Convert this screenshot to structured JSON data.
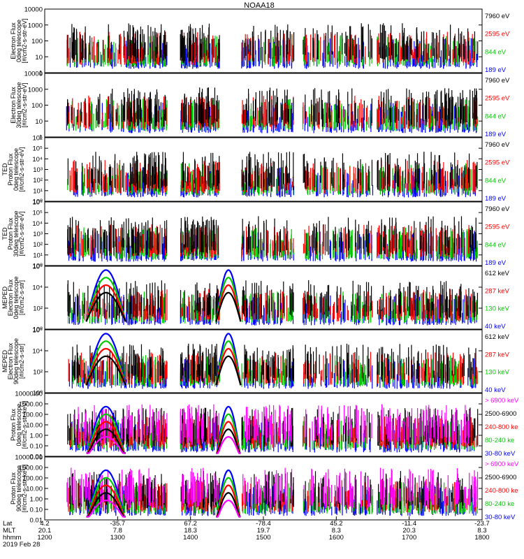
{
  "title": "NOAA18",
  "colors": {
    "blue": "#0000ff",
    "red": "#ff0000",
    "green": "#00cc00",
    "black": "#000000",
    "magenta": "#ff00ff"
  },
  "chart_data": [
    {
      "type": "line",
      "ylabel": [
        "Electron Flux",
        "0deg telescope",
        "[#/cm2-s-str-eV]"
      ],
      "yscale": "log",
      "ylim": [
        1,
        10000
      ],
      "yticks": [
        "1",
        "10",
        "100",
        "1000",
        "10000"
      ],
      "legend": [
        {
          "label": "7960 eV",
          "color": "black"
        },
        {
          "label": "2595 eV",
          "color": "red"
        },
        {
          "label": "844 eV",
          "color": "green"
        },
        {
          "label": "189 eV",
          "color": "blue"
        }
      ]
    },
    {
      "type": "line",
      "ylabel": [
        "Electron Flux",
        "30deg telescope",
        "[#/cm2-s-str-eV]"
      ],
      "yscale": "log",
      "ylim": [
        1,
        10000
      ],
      "yticks": [
        "1",
        "10",
        "100",
        "1000",
        "10000"
      ],
      "legend": [
        {
          "label": "7960 eV",
          "color": "black"
        },
        {
          "label": "2595 eV",
          "color": "red"
        },
        {
          "label": "844 eV",
          "color": "green"
        },
        {
          "label": "189 eV",
          "color": "blue"
        }
      ]
    },
    {
      "type": "line",
      "ylabel": [
        "TED",
        "Proton Flux",
        "0deg telescope",
        "[#/cm2-s-str-eV]"
      ],
      "yscale": "log",
      "ylim": [
        1,
        1000000
      ],
      "yticks": [
        "10⁰",
        "10¹",
        "10²",
        "10³",
        "10⁴",
        "10⁵",
        "10⁶"
      ],
      "legend": [
        {
          "label": "7960 eV",
          "color": "black"
        },
        {
          "label": "2595 eV",
          "color": "red"
        },
        {
          "label": "844 eV",
          "color": "green"
        },
        {
          "label": "189 eV",
          "color": "blue"
        }
      ]
    },
    {
      "type": "line",
      "ylabel": [
        "TED",
        "Proton Flux",
        "30deg telescope",
        "[#/cm2-s-str-eV]"
      ],
      "yscale": "log",
      "ylim": [
        1,
        1000000
      ],
      "yticks": [
        "10⁰",
        "10¹",
        "10²",
        "10³",
        "10⁴",
        "10⁵",
        "10⁶"
      ],
      "legend": [
        {
          "label": "7960 eV",
          "color": "black"
        },
        {
          "label": "2595 eV",
          "color": "red"
        },
        {
          "label": "844 eV",
          "color": "green"
        },
        {
          "label": "189 eV",
          "color": "blue"
        }
      ]
    },
    {
      "type": "line",
      "ylabel": [
        "MEPED",
        "Electron Flux",
        "0deg telescope",
        "[#/cm2-s-str]"
      ],
      "yscale": "log",
      "ylim": [
        1,
        1000000
      ],
      "yticks": [
        "10⁰",
        "10²",
        "10⁴",
        "10⁶"
      ],
      "legend": [
        {
          "label": "612 keV",
          "color": "black"
        },
        {
          "label": "287 keV",
          "color": "red"
        },
        {
          "label": "130 keV",
          "color": "green"
        },
        {
          "label": "40 keV",
          "color": "blue"
        }
      ]
    },
    {
      "type": "line",
      "ylabel": [
        "MEPED",
        "Electron Flux",
        "90deg telescope",
        "[#/cm2-s-str]"
      ],
      "yscale": "log",
      "ylim": [
        1,
        1000000
      ],
      "yticks": [
        "10⁰",
        "10²",
        "10⁴",
        "10⁶"
      ],
      "legend": [
        {
          "label": "612 keV",
          "color": "black"
        },
        {
          "label": "287 keV",
          "color": "red"
        },
        {
          "label": "130 keV",
          "color": "green"
        },
        {
          "label": "40 keV",
          "color": "blue"
        }
      ]
    },
    {
      "type": "line",
      "ylabel": [
        "Proton Flux",
        "0deg telescope",
        "[#/cm2-s-str-keV]"
      ],
      "yscale": "log",
      "ylim": [
        0.01,
        10000
      ],
      "yticks": [
        "0.01",
        "0.10",
        "1.00",
        "10.00",
        "100.00",
        "1000.00",
        "10000.00"
      ],
      "legend": [
        {
          "label": "> 6900 keV",
          "color": "magenta"
        },
        {
          "label": "2500-6900",
          "color": "black"
        },
        {
          "label": "240-800 ke",
          "color": "red"
        },
        {
          "label": "80-240 ke",
          "color": "green"
        },
        {
          "label": "30-80 keV",
          "color": "blue"
        }
      ]
    },
    {
      "type": "line",
      "ylabel": [
        "Proton Flux",
        "90deg telescope",
        "[#/cm2-s-str-keV]"
      ],
      "yscale": "log",
      "ylim": [
        0.01,
        10000
      ],
      "yticks": [
        "0.01",
        "0.10",
        "1.00",
        "10.00",
        "100.00",
        "1000.00",
        "10000.00"
      ],
      "legend": [
        {
          "label": "> 6900 keV",
          "color": "magenta"
        },
        {
          "label": "2500-6900",
          "color": "black"
        },
        {
          "label": "240-800 ke",
          "color": "red"
        },
        {
          "label": "80-240 ke",
          "color": "green"
        },
        {
          "label": "30-80 keV",
          "color": "blue"
        }
      ]
    }
  ],
  "xaxis": {
    "row_labels": [
      "Lat",
      "MLT",
      "hhmm"
    ],
    "date": "2019 Feb 28",
    "ticks": [
      {
        "lat": "4.2",
        "mlt": "20.1",
        "hhmm": "1200"
      },
      {
        "lat": "-35.7",
        "mlt": "7.8",
        "hhmm": "1300"
      },
      {
        "lat": "67.2",
        "mlt": "18.3",
        "hhmm": "1400"
      },
      {
        "lat": "-78.4",
        "mlt": "19.7",
        "hhmm": "1500"
      },
      {
        "lat": "45.2",
        "mlt": "8.3",
        "hhmm": "1600"
      },
      {
        "lat": "-11.4",
        "mlt": "20.3",
        "hhmm": "1700"
      },
      {
        "lat": "-23.7",
        "mlt": "8.3",
        "hhmm": "1800"
      }
    ]
  }
}
